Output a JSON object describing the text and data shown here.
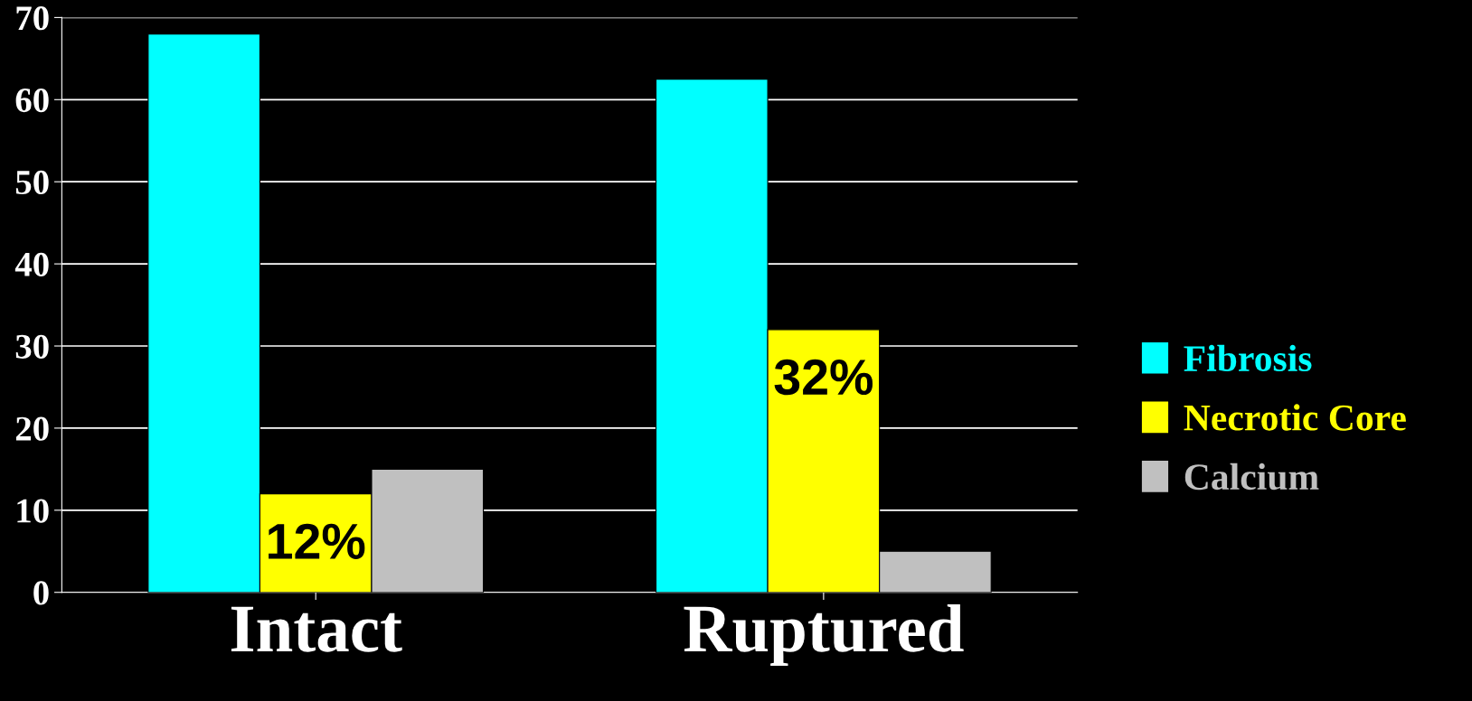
{
  "chart_data": {
    "type": "bar",
    "categories": [
      "Intact",
      "Ruptured"
    ],
    "series": [
      {
        "name": "Fibrosis",
        "color": "#00ffff",
        "values": [
          68,
          62.5
        ]
      },
      {
        "name": "Necrotic Core",
        "color": "#ffff00",
        "values": [
          12,
          32
        ],
        "value_labels": [
          "12%",
          "32%"
        ]
      },
      {
        "name": "Calcium",
        "color": "#c0c0c0",
        "values": [
          15,
          5
        ]
      }
    ],
    "ylim": [
      0,
      70
    ],
    "yticks": [
      0,
      10,
      20,
      30,
      40,
      50,
      60,
      70
    ],
    "grid": "y",
    "legend": "right"
  }
}
